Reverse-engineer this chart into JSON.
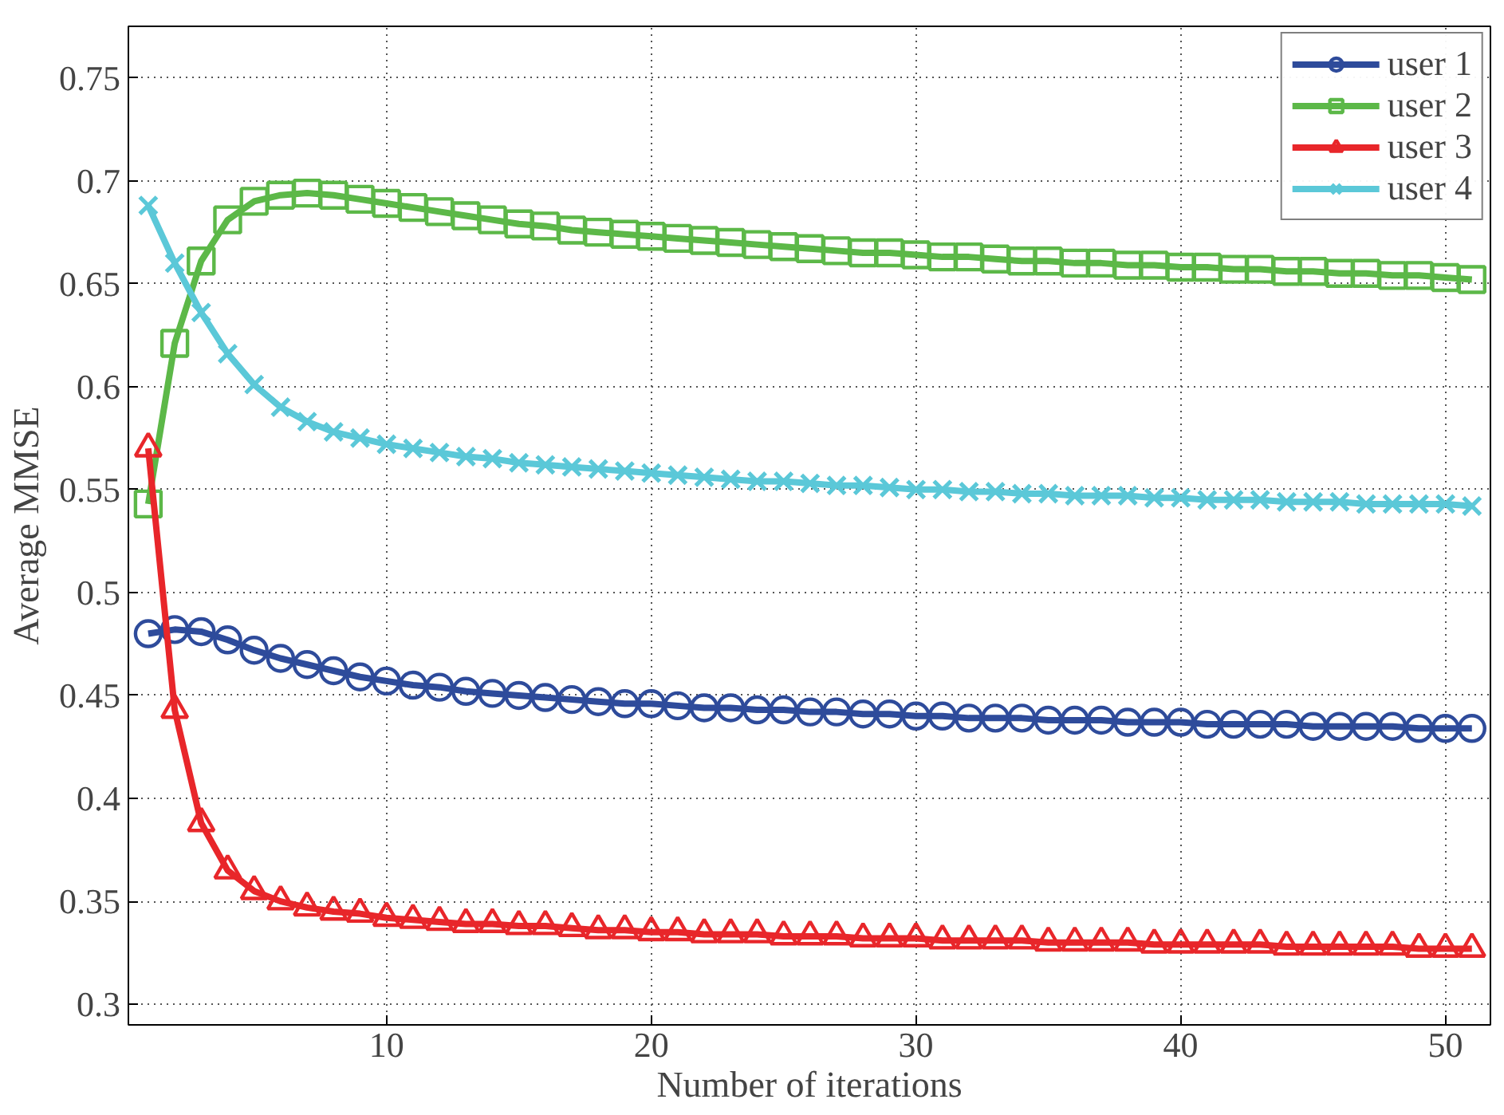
{
  "chart_data": {
    "type": "line",
    "xlabel": "Number of iterations",
    "ylabel": "Average MMSE",
    "x": [
      1,
      2,
      3,
      4,
      5,
      6,
      7,
      8,
      9,
      10,
      11,
      12,
      13,
      14,
      15,
      16,
      17,
      18,
      19,
      20,
      21,
      22,
      23,
      24,
      25,
      26,
      27,
      28,
      29,
      30,
      31,
      32,
      33,
      34,
      35,
      36,
      37,
      38,
      39,
      40,
      41,
      42,
      43,
      44,
      45,
      46,
      47,
      48,
      49,
      50,
      51
    ],
    "xlim": [
      0.25,
      51.7
    ],
    "xticks": [
      10,
      20,
      30,
      40,
      50
    ],
    "ylim": [
      0.29,
      0.775
    ],
    "yticks": [
      0.3,
      0.35,
      0.4,
      0.45,
      0.5,
      0.55,
      0.6,
      0.65,
      0.7,
      0.75
    ],
    "grid": true,
    "legend": "top right",
    "series": [
      {
        "name": "user 1",
        "color": "#2e4b9b",
        "marker": "circle",
        "values": [
          0.48,
          0.482,
          0.481,
          0.477,
          0.472,
          0.468,
          0.465,
          0.462,
          0.459,
          0.457,
          0.455,
          0.454,
          0.452,
          0.451,
          0.45,
          0.449,
          0.448,
          0.447,
          0.446,
          0.446,
          0.445,
          0.444,
          0.444,
          0.443,
          0.443,
          0.442,
          0.442,
          0.441,
          0.441,
          0.44,
          0.44,
          0.439,
          0.439,
          0.439,
          0.438,
          0.438,
          0.438,
          0.437,
          0.437,
          0.437,
          0.436,
          0.436,
          0.436,
          0.436,
          0.435,
          0.435,
          0.435,
          0.435,
          0.434,
          0.434,
          0.434
        ]
      },
      {
        "name": "user 2",
        "color": "#5cb848",
        "marker": "square",
        "values": [
          0.543,
          0.621,
          0.661,
          0.681,
          0.69,
          0.693,
          0.694,
          0.693,
          0.691,
          0.689,
          0.687,
          0.685,
          0.683,
          0.681,
          0.679,
          0.678,
          0.676,
          0.675,
          0.674,
          0.673,
          0.672,
          0.671,
          0.67,
          0.669,
          0.668,
          0.667,
          0.666,
          0.665,
          0.665,
          0.664,
          0.663,
          0.663,
          0.662,
          0.661,
          0.661,
          0.66,
          0.66,
          0.659,
          0.659,
          0.658,
          0.658,
          0.657,
          0.657,
          0.656,
          0.656,
          0.655,
          0.655,
          0.654,
          0.654,
          0.653,
          0.652
        ]
      },
      {
        "name": "user 3",
        "color": "#e8262a",
        "marker": "triangle",
        "values": [
          0.57,
          0.443,
          0.388,
          0.365,
          0.355,
          0.35,
          0.347,
          0.345,
          0.344,
          0.342,
          0.341,
          0.34,
          0.339,
          0.339,
          0.338,
          0.338,
          0.337,
          0.336,
          0.336,
          0.335,
          0.335,
          0.334,
          0.334,
          0.334,
          0.333,
          0.333,
          0.333,
          0.332,
          0.332,
          0.332,
          0.331,
          0.331,
          0.331,
          0.331,
          0.33,
          0.33,
          0.33,
          0.33,
          0.329,
          0.329,
          0.329,
          0.329,
          0.329,
          0.328,
          0.328,
          0.328,
          0.328,
          0.328,
          0.327,
          0.327,
          0.327
        ]
      },
      {
        "name": "user 4",
        "color": "#5bc8d8",
        "marker": "x",
        "values": [
          0.688,
          0.66,
          0.636,
          0.616,
          0.601,
          0.59,
          0.583,
          0.578,
          0.575,
          0.572,
          0.57,
          0.568,
          0.566,
          0.565,
          0.563,
          0.562,
          0.561,
          0.56,
          0.559,
          0.558,
          0.557,
          0.556,
          0.555,
          0.554,
          0.554,
          0.553,
          0.552,
          0.552,
          0.551,
          0.55,
          0.55,
          0.549,
          0.549,
          0.548,
          0.548,
          0.547,
          0.547,
          0.547,
          0.546,
          0.546,
          0.545,
          0.545,
          0.545,
          0.544,
          0.544,
          0.544,
          0.543,
          0.543,
          0.543,
          0.543,
          0.542
        ]
      }
    ]
  }
}
